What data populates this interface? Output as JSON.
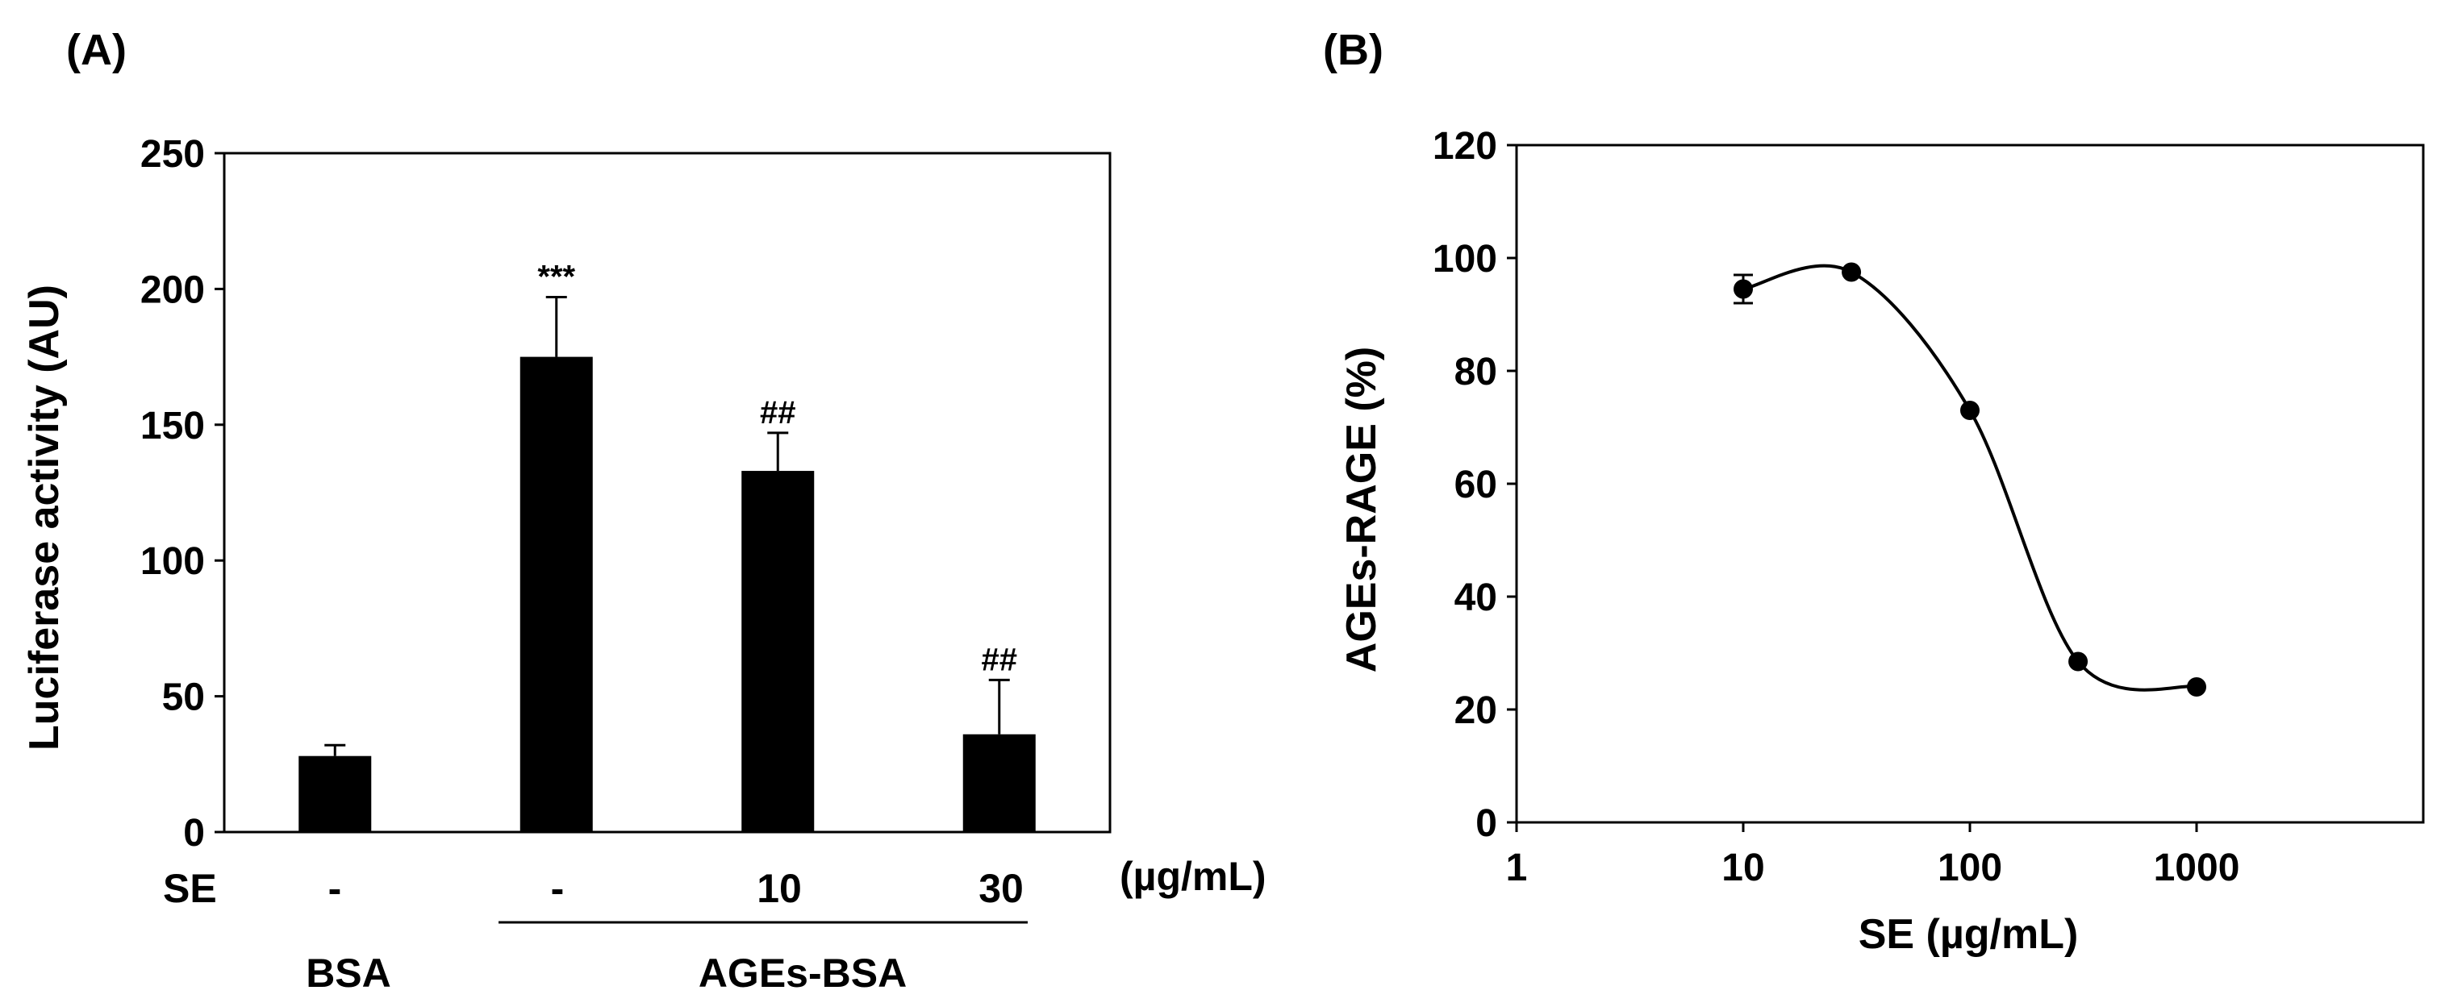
{
  "colors": {
    "bar": "#000000",
    "axis": "#000000",
    "background": "#ffffff"
  },
  "chart_data": [
    {
      "panel": "(A)",
      "type": "bar",
      "ylabel": "Luciferase activity (AU)",
      "ylim": [
        0,
        250
      ],
      "yticks": [
        0,
        50,
        100,
        150,
        200,
        250
      ],
      "grid": false,
      "categories": [
        "BSA, SE -",
        "AGEs-BSA, SE -",
        "AGEs-BSA, SE 10",
        "AGEs-BSA, SE 30"
      ],
      "values": [
        28,
        175,
        133,
        36
      ],
      "errors": [
        4,
        22,
        14,
        20
      ],
      "significance": [
        "",
        "***",
        "##",
        "##"
      ],
      "se_row": {
        "label": "SE",
        "values": [
          "-",
          "-",
          "10",
          "30"
        ],
        "unit": "(µg/mL)"
      },
      "groups": [
        {
          "label": "BSA"
        },
        {
          "label": "AGEs-BSA"
        }
      ]
    },
    {
      "panel": "(B)",
      "type": "scatter",
      "xlabel": "SE (µg/mL)",
      "ylabel": "AGEs-RAGE  (%)",
      "xscale": "log",
      "xlim": [
        1,
        10000
      ],
      "xticks": [
        1,
        10,
        100,
        1000
      ],
      "ylim": [
        0,
        120
      ],
      "yticks": [
        0,
        20,
        40,
        60,
        80,
        100,
        120
      ],
      "grid": false,
      "x": [
        10,
        30,
        100,
        300,
        1000
      ],
      "y": [
        94.5,
        97.5,
        73,
        28.5,
        24
      ],
      "errors": [
        2.5,
        0.5,
        0.5,
        0.5,
        0.5
      ],
      "fit_curve": true
    }
  ]
}
